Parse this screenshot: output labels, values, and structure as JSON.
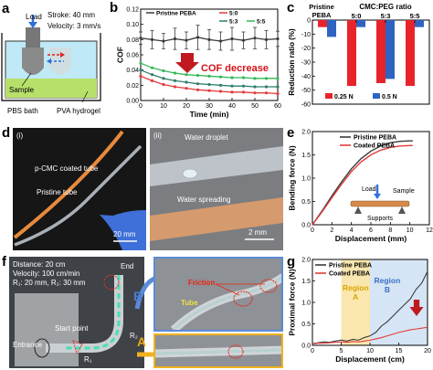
{
  "panels": {
    "a": {
      "label": "a",
      "load": "Load",
      "stroke": "Stroke: 40 mm",
      "velocity": "Velocity: 3 mm/s",
      "sample": "Sample",
      "bath": "PBS bath",
      "hydrogel": "PVA hydrogel"
    },
    "b": {
      "label": "b",
      "annotation": "COF decrease"
    },
    "c": {
      "label": "c",
      "top_title": "CMC:PEG ratio"
    },
    "d": {
      "label": "d",
      "sub_i": "(i)",
      "sub_ii": "(ii)",
      "coated_tube": "p-CMC coated tube",
      "pristine_tube": "Pristine tube",
      "scale_i": "20 mm",
      "water_droplet": "Water droplet",
      "water_spreading": "Water spreading",
      "scale_ii": "2 mm"
    },
    "e": {
      "label": "e",
      "load": "Load",
      "sample": "Sample",
      "supports": "Supports"
    },
    "f": {
      "label": "f",
      "info_distance": "Distance: 20 cm",
      "info_velocity": "Velocity: 100 cm/min",
      "info_radii": "R₁: 20 mm, R₂: 30 mm",
      "end": "End",
      "entrance": "Entrance",
      "start_point": "Start point",
      "r1": "R₁",
      "r2": "R₂",
      "arrow_a": "A",
      "arrow_b": "B",
      "friction": "Friction",
      "tube": "Tube"
    },
    "g": {
      "label": "g",
      "region_a": "Region A",
      "region_b": "Region B"
    }
  },
  "colors": {
    "pristine": "#3a3a3a",
    "r50": "#e23b3b",
    "r53": "#2e7d6b",
    "r55": "#35b858",
    "n025": "#e8242b",
    "n05": "#2f63c2",
    "coated": "#e23b3b",
    "regionA": "#f7d77a",
    "regionB": "#b9d3ee"
  },
  "chart_data": [
    {
      "panel": "b",
      "type": "line",
      "xlabel": "Time (min)",
      "ylabel": "COF",
      "xlim": [
        0,
        60
      ],
      "ylim": [
        0.0,
        0.12
      ],
      "xticks": [
        "0",
        "10",
        "20",
        "30",
        "40",
        "50",
        "60"
      ],
      "yticks": [
        "0.00",
        "0.02",
        "0.04",
        "0.06",
        "0.08",
        "0.10",
        "0.12"
      ],
      "legend": [
        {
          "key": "pristine",
          "label": "Pristine PEBA"
        },
        {
          "key": "r50",
          "label": "5:0"
        },
        {
          "key": "r53",
          "label": "5:3"
        },
        {
          "key": "r55",
          "label": "5:5"
        }
      ],
      "series": [
        {
          "name": "Pristine PEBA",
          "key": "pristine",
          "x": [
            0,
            5,
            10,
            15,
            20,
            25,
            30,
            35,
            40,
            45,
            50,
            55,
            60
          ],
          "y": [
            0.082,
            0.08,
            0.078,
            0.081,
            0.079,
            0.083,
            0.08,
            0.078,
            0.081,
            0.079,
            0.082,
            0.08,
            0.081
          ],
          "err": [
            0.008,
            0.012,
            0.01,
            0.014,
            0.011,
            0.016,
            0.013,
            0.012,
            0.015,
            0.011,
            0.014,
            0.012,
            0.01
          ]
        },
        {
          "name": "5:0",
          "key": "r50",
          "x": [
            0,
            5,
            10,
            15,
            20,
            25,
            30,
            35,
            40,
            45,
            50,
            55,
            60
          ],
          "y": [
            0.032,
            0.026,
            0.021,
            0.018,
            0.016,
            0.014,
            0.013,
            0.012,
            0.011,
            0.011,
            0.01,
            0.01,
            0.009
          ]
        },
        {
          "name": "5:3",
          "key": "r53",
          "x": [
            0,
            5,
            10,
            15,
            20,
            25,
            30,
            35,
            40,
            45,
            50,
            55,
            60
          ],
          "y": [
            0.04,
            0.034,
            0.029,
            0.026,
            0.024,
            0.022,
            0.021,
            0.02,
            0.019,
            0.019,
            0.018,
            0.018,
            0.018
          ]
        },
        {
          "name": "5:5",
          "key": "r55",
          "x": [
            0,
            5,
            10,
            15,
            20,
            25,
            30,
            35,
            40,
            45,
            50,
            55,
            60
          ],
          "y": [
            0.049,
            0.043,
            0.039,
            0.036,
            0.034,
            0.033,
            0.032,
            0.031,
            0.03,
            0.03,
            0.029,
            0.029,
            0.029
          ]
        }
      ]
    },
    {
      "panel": "c",
      "type": "bar",
      "ylabel": "Reduction ratio (%)",
      "ylim": [
        -60,
        0
      ],
      "yticks": [
        "0",
        "-10",
        "-20",
        "-30",
        "-40",
        "-50",
        "-60"
      ],
      "categories": [
        "Pristine PEBA",
        "5:0",
        "5:3",
        "5:5"
      ],
      "legend": [
        {
          "key": "n025",
          "label": "0.25 N"
        },
        {
          "key": "n05",
          "label": "0.5 N"
        }
      ],
      "series": [
        {
          "name": "0.25 N",
          "key": "n025",
          "values": [
            -5,
            -47,
            -45,
            -47
          ]
        },
        {
          "name": "0.5 N",
          "key": "n05",
          "values": [
            -12,
            -5,
            -42,
            -5
          ]
        }
      ]
    },
    {
      "panel": "e",
      "type": "line",
      "xlabel": "Displacement (mm)",
      "ylabel": "Bending force (N)",
      "xlim": [
        0,
        12
      ],
      "ylim": [
        0.0,
        2.0
      ],
      "xticks": [
        "0",
        "2",
        "4",
        "6",
        "8",
        "10",
        "12"
      ],
      "yticks": [
        "0.0",
        "0.5",
        "1.0",
        "1.5",
        "2.0"
      ],
      "legend": [
        {
          "key": "pristine",
          "label": "Pristine PEBA"
        },
        {
          "key": "coated",
          "label": "Coated PEBA"
        }
      ],
      "series": [
        {
          "name": "Pristine PEBA",
          "key": "pristine",
          "x": [
            0,
            1,
            2,
            3,
            4,
            5,
            6,
            7,
            8,
            9,
            10,
            10.3
          ],
          "y": [
            0.0,
            0.3,
            0.62,
            0.92,
            1.2,
            1.42,
            1.58,
            1.69,
            1.76,
            1.79,
            1.8,
            1.8
          ]
        },
        {
          "name": "Coated PEBA",
          "key": "coated",
          "x": [
            0,
            1,
            2,
            3,
            4,
            5,
            6,
            7,
            8,
            9,
            10,
            10.3
          ],
          "y": [
            0.0,
            0.28,
            0.58,
            0.87,
            1.14,
            1.35,
            1.5,
            1.6,
            1.66,
            1.69,
            1.7,
            1.7
          ]
        }
      ]
    },
    {
      "panel": "g",
      "type": "line",
      "xlabel": "Displacement (cm)",
      "ylabel": "Proximal force (N)",
      "xlim": [
        0,
        20
      ],
      "ylim": [
        0.0,
        2.0
      ],
      "xticks": [
        "0",
        "5",
        "10",
        "15",
        "20"
      ],
      "yticks": [
        "0.0",
        "0.5",
        "1.0",
        "1.5",
        "2.0"
      ],
      "regions": [
        {
          "key": "regionA",
          "label": "Region A",
          "from": 5,
          "to": 10
        },
        {
          "key": "regionB",
          "label": "Region B",
          "from": 10,
          "to": 20
        }
      ],
      "legend": [
        {
          "key": "pristine",
          "label": "Pristine PEBA"
        },
        {
          "key": "coated",
          "label": "Coated PEBA"
        }
      ],
      "series": [
        {
          "name": "Pristine PEBA",
          "key": "pristine",
          "x": [
            0,
            1,
            2,
            3,
            4,
            5,
            6,
            7,
            8,
            9,
            10,
            11,
            12,
            13,
            14,
            15,
            16,
            17,
            18,
            19,
            20
          ],
          "y": [
            0.04,
            0.06,
            0.08,
            0.07,
            0.1,
            0.12,
            0.1,
            0.14,
            0.12,
            0.18,
            0.22,
            0.3,
            0.45,
            0.55,
            0.68,
            0.82,
            0.95,
            1.08,
            1.3,
            1.45,
            1.72
          ]
        },
        {
          "name": "Coated PEBA",
          "key": "coated",
          "x": [
            0,
            1,
            2,
            3,
            4,
            5,
            6,
            7,
            8,
            9,
            10,
            11,
            12,
            13,
            14,
            15,
            16,
            17,
            18,
            19,
            20
          ],
          "y": [
            0.03,
            0.05,
            0.05,
            0.06,
            0.07,
            0.08,
            0.07,
            0.09,
            0.08,
            0.1,
            0.12,
            0.15,
            0.18,
            0.22,
            0.26,
            0.3,
            0.33,
            0.36,
            0.38,
            0.4,
            0.42
          ]
        }
      ]
    }
  ]
}
